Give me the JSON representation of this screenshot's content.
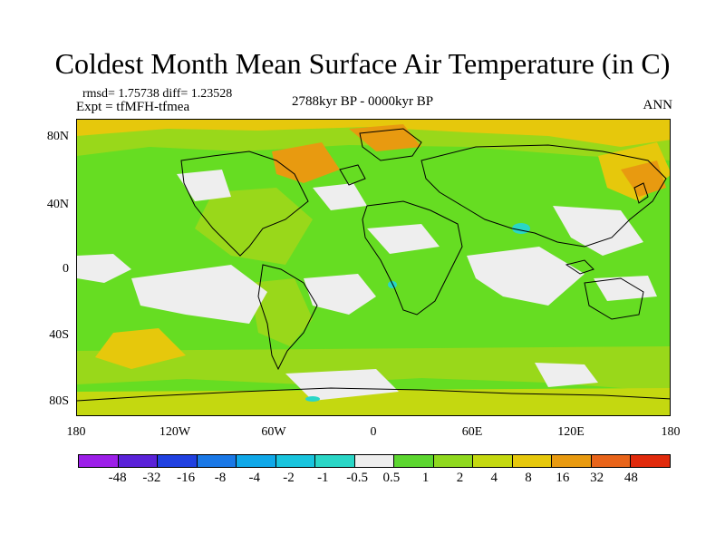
{
  "title": "Coldest Month Mean Surface Air Temperature (in C)",
  "stats_text": "rmsd= 1.75738 diff= 1.23528",
  "experiment_text": "Expt = tfMFH-tfmea",
  "period_text": "2788kyr BP - 0000kyr BP",
  "season_text": "ANN",
  "map": {
    "lat_ticks": [
      "80N",
      "40N",
      "0",
      "40S",
      "80S"
    ],
    "lon_ticks": [
      "180",
      "120W",
      "60W",
      "0",
      "60E",
      "120E",
      "180"
    ]
  },
  "colorbar": {
    "colors": [
      "#9c1fe8",
      "#5a22d8",
      "#2040e0",
      "#1a78e6",
      "#10a8e8",
      "#19c4dd",
      "#2ad6c6",
      "#eeeeee",
      "#5cd630",
      "#8fd81f",
      "#c4d810",
      "#e6c80c",
      "#e89a10",
      "#e8641a",
      "#e02a0c"
    ],
    "labels": [
      "-48",
      "-32",
      "-16",
      "-8",
      "-4",
      "-2",
      "-1",
      "-0.5",
      "0.5",
      "1",
      "2",
      "4",
      "8",
      "16",
      "32",
      "48"
    ]
  }
}
